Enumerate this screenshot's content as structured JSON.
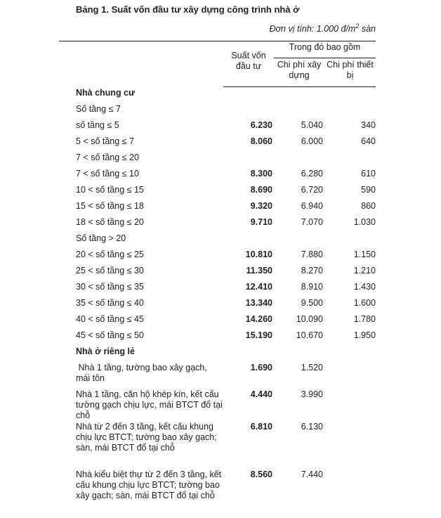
{
  "title": "Bảng 1. Suất vốn đầu tư xây dựng công trình nhà ở",
  "unit": "Đơn vị tính: 1.000 đ/m",
  "unit_sup": "2",
  "unit_tail": " sàn",
  "headers": {
    "col1": "Suất vốn đầu tư",
    "group": "Trong đó bao gồm",
    "col2": "Chi phí xây dựng",
    "col3": "Chi phí thiết bị"
  },
  "rows": [
    {
      "label": "Nhà chung cư",
      "type": "section"
    },
    {
      "label": "Số tầng ≤ 7",
      "type": "group"
    },
    {
      "label": "số tầng ≤ 5",
      "v1": "6.230",
      "v2": "5.040",
      "v3": "340"
    },
    {
      "label": "5 < số tầng ≤ 7",
      "v1": "8.060",
      "v2": "6.000",
      "v3": "640"
    },
    {
      "label": "7 < số tầng ≤ 20",
      "type": "group"
    },
    {
      "label": "7 < số tầng ≤ 10",
      "v1": "8.300",
      "v2": "6.280",
      "v3": "610"
    },
    {
      "label": "10 < số tầng ≤ 15",
      "v1": "8.690",
      "v2": "6.720",
      "v3": "590"
    },
    {
      "label": "15 < số tầng ≤ 18",
      "v1": "9.320",
      "v2": "6.940",
      "v3": "860"
    },
    {
      "label": "18 < số tầng ≤ 20",
      "v1": "9.710",
      "v2": "7.070",
      "v3": "1.030"
    },
    {
      "label": "Số tầng > 20",
      "type": "group"
    },
    {
      "label": "20 < số tầng ≤ 25",
      "v1": "10.810",
      "v2": "7.880",
      "v3": "1.150"
    },
    {
      "label": "25 < số tầng ≤ 30",
      "v1": "11.350",
      "v2": "8.270",
      "v3": "1.210"
    },
    {
      "label": "30 < số tầng ≤ 35",
      "v1": "12.410",
      "v2": "8.910",
      "v3": "1.430"
    },
    {
      "label": "35 < số tầng ≤ 40",
      "v1": "13.340",
      "v2": "9.500",
      "v3": "1.600"
    },
    {
      "label": "40 < số tầng ≤ 45",
      "v1": "14.260",
      "v2": "10.090",
      "v3": "1.780"
    },
    {
      "label": "45 < số tầng ≤ 50",
      "v1": "15.190",
      "v2": "10.670",
      "v3": "1.950"
    },
    {
      "label": "Nhà ở riêng lẻ",
      "type": "section"
    },
    {
      "label": " Nhà 1 tầng, tường bao xây gạch, mái tôn",
      "v1": "1.690",
      "v2": "1.520"
    },
    {
      "label": "Nhà 1 tầng, căn hộ khép kín, kết cấu tường gạch chịu lực, mái BTCT đổ tại chỗ",
      "v1": "4.440",
      "v2": "3.990"
    },
    {
      "label": "Nhà từ 2 đến 3 tầng, kết cấu khung chịu lực BTCT; tường bao xây gạch; sàn, mái BTCT đổ tại chỗ",
      "v1": "6.810",
      "v2": "6.130"
    },
    {
      "label": "Nhà kiểu biệt thự từ 2 đến 3 tầng, kết cấu khung chịu lực BTCT; tường bao xây gạch; sàn, mái BTCT đổ tại chỗ",
      "v1": "8.560",
      "v2": "7.440"
    }
  ]
}
